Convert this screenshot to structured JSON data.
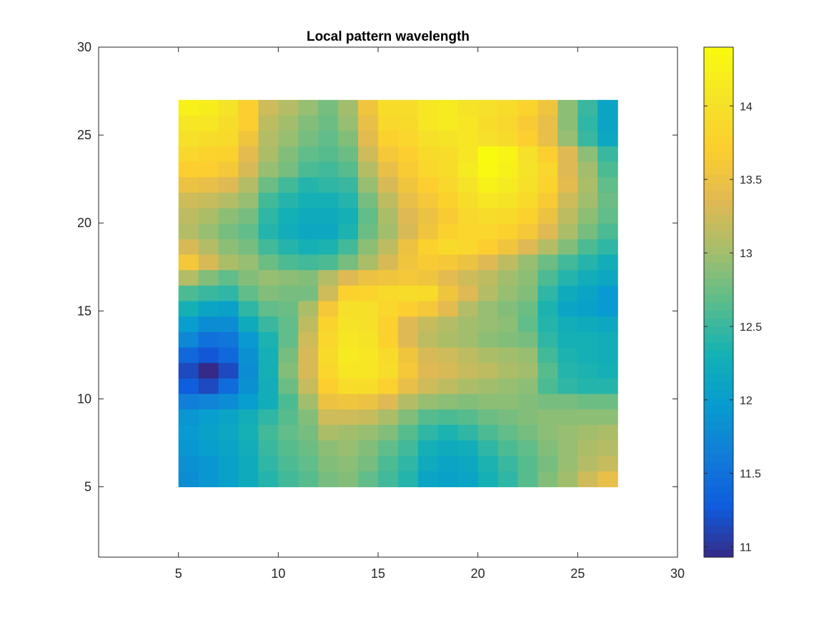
{
  "chart_data": {
    "type": "heatmap",
    "title": "Local pattern wavelength",
    "xlabel": "",
    "ylabel": "",
    "xlim": [
      1,
      30
    ],
    "ylim": [
      1,
      30
    ],
    "xticks": [
      5,
      10,
      15,
      20,
      25,
      30
    ],
    "yticks": [
      5,
      10,
      15,
      20,
      25,
      30
    ],
    "grid": false,
    "colormap": "parula",
    "clim": [
      10.93,
      14.4
    ],
    "colorbar": {
      "position": "right",
      "ticks": [
        11,
        11.5,
        12,
        12.5,
        13,
        13.5,
        14
      ]
    },
    "x_range": [
      5,
      27
    ],
    "y_range": [
      5,
      27
    ],
    "rows_top_to_bottom": [
      [
        14.25,
        14.2,
        14.05,
        13.7,
        13.25,
        13.1,
        12.95,
        12.8,
        13.0,
        13.55,
        13.95,
        13.95,
        14.1,
        14.15,
        14.05,
        14.0,
        13.95,
        13.8,
        13.55,
        12.9,
        12.5,
        12.1
      ],
      [
        14.1,
        14.1,
        13.95,
        13.7,
        13.15,
        13.0,
        12.85,
        12.75,
        12.95,
        13.45,
        13.85,
        13.9,
        14.1,
        14.15,
        14.1,
        13.95,
        13.85,
        13.65,
        13.45,
        12.9,
        12.45,
        12.1
      ],
      [
        14.0,
        13.95,
        13.9,
        13.55,
        13.1,
        12.95,
        12.8,
        12.7,
        12.85,
        13.4,
        13.75,
        13.85,
        14.0,
        14.05,
        14.1,
        14.0,
        13.9,
        13.7,
        13.45,
        12.95,
        12.5,
        12.15
      ],
      [
        13.85,
        13.8,
        13.75,
        13.4,
        13.05,
        12.85,
        12.7,
        12.65,
        12.75,
        13.25,
        13.6,
        13.7,
        13.9,
        13.95,
        14.1,
        14.4,
        14.3,
        14.0,
        13.7,
        13.35,
        12.9,
        12.5
      ],
      [
        13.7,
        13.7,
        13.6,
        13.3,
        12.95,
        12.8,
        12.6,
        12.55,
        12.65,
        13.1,
        13.45,
        13.65,
        13.85,
        13.95,
        14.15,
        14.35,
        14.25,
        14.05,
        13.85,
        13.35,
        13.0,
        12.6
      ],
      [
        13.5,
        13.45,
        13.35,
        13.1,
        12.75,
        12.55,
        12.4,
        12.45,
        12.5,
        12.95,
        13.3,
        13.55,
        13.7,
        13.85,
        14.05,
        14.25,
        14.15,
        14.0,
        13.8,
        13.4,
        13.05,
        12.7
      ],
      [
        13.25,
        13.2,
        13.1,
        12.95,
        12.55,
        12.4,
        12.3,
        12.3,
        12.4,
        12.8,
        13.15,
        13.45,
        13.6,
        13.75,
        13.95,
        14.1,
        14.05,
        13.9,
        13.65,
        13.25,
        13.0,
        12.75
      ],
      [
        13.15,
        13.05,
        12.9,
        12.8,
        12.45,
        12.3,
        12.2,
        12.2,
        12.3,
        12.7,
        13.05,
        13.35,
        13.5,
        13.65,
        13.85,
        13.95,
        13.9,
        13.75,
        13.5,
        13.15,
        12.9,
        12.7
      ],
      [
        13.1,
        12.95,
        12.8,
        12.7,
        12.4,
        12.25,
        12.15,
        12.15,
        12.35,
        12.75,
        13.0,
        13.3,
        13.55,
        13.75,
        13.85,
        13.85,
        13.75,
        13.6,
        13.35,
        13.05,
        12.8,
        12.6
      ],
      [
        13.3,
        13.1,
        12.9,
        12.8,
        12.55,
        12.4,
        12.3,
        12.35,
        12.55,
        12.9,
        13.15,
        13.5,
        13.75,
        13.9,
        13.85,
        13.7,
        13.55,
        13.35,
        13.1,
        12.85,
        12.6,
        12.45
      ],
      [
        13.6,
        13.3,
        13.05,
        12.95,
        12.75,
        12.6,
        12.55,
        12.6,
        12.8,
        13.05,
        13.3,
        13.55,
        13.65,
        13.6,
        13.5,
        13.35,
        13.15,
        12.95,
        12.75,
        12.55,
        12.4,
        12.25
      ],
      [
        13.1,
        12.85,
        12.7,
        12.85,
        12.95,
        12.9,
        12.85,
        13.1,
        13.35,
        13.5,
        13.55,
        13.6,
        13.55,
        13.4,
        13.25,
        13.15,
        13.0,
        12.9,
        12.6,
        12.4,
        12.25,
        12.15
      ],
      [
        12.6,
        12.5,
        12.45,
        12.7,
        12.85,
        12.8,
        12.8,
        13.25,
        13.75,
        13.8,
        13.9,
        13.95,
        13.9,
        13.55,
        13.35,
        13.1,
        12.95,
        12.85,
        12.45,
        12.2,
        12.1,
        11.95
      ],
      [
        12.3,
        12.1,
        12.05,
        12.45,
        12.7,
        12.75,
        13.05,
        13.6,
        14.0,
        14.0,
        13.85,
        13.7,
        13.6,
        13.4,
        13.1,
        12.95,
        12.85,
        12.75,
        12.35,
        12.1,
        12.05,
        11.95
      ],
      [
        12.0,
        11.8,
        11.8,
        12.2,
        12.5,
        12.7,
        13.15,
        13.8,
        14.05,
        14.0,
        13.75,
        13.35,
        13.2,
        13.1,
        13.0,
        12.95,
        12.9,
        12.7,
        12.4,
        12.25,
        12.2,
        12.15
      ],
      [
        11.75,
        11.5,
        11.55,
        11.95,
        12.35,
        12.7,
        13.25,
        13.85,
        14.1,
        14.05,
        13.75,
        13.35,
        13.15,
        13.05,
        13.0,
        12.9,
        12.85,
        12.8,
        12.45,
        12.3,
        12.3,
        12.25
      ],
      [
        11.4,
        11.25,
        11.4,
        11.85,
        12.3,
        12.8,
        13.3,
        13.9,
        14.15,
        14.1,
        13.9,
        13.55,
        13.3,
        13.25,
        13.15,
        13.05,
        13.0,
        12.95,
        12.55,
        12.35,
        12.3,
        12.25
      ],
      [
        11.15,
        10.93,
        11.15,
        11.8,
        12.3,
        12.85,
        13.3,
        13.85,
        14.1,
        14.1,
        13.95,
        13.6,
        13.35,
        13.3,
        13.2,
        13.15,
        13.05,
        13.0,
        12.65,
        12.4,
        12.35,
        12.3
      ],
      [
        11.3,
        11.15,
        11.45,
        11.85,
        12.25,
        12.75,
        13.2,
        13.7,
        13.95,
        13.95,
        13.75,
        13.45,
        13.25,
        13.15,
        13.05,
        13.0,
        12.95,
        12.9,
        12.6,
        12.45,
        12.4,
        12.4
      ],
      [
        11.65,
        11.7,
        11.8,
        12.0,
        12.25,
        12.6,
        13.0,
        13.5,
        13.55,
        13.5,
        13.35,
        13.1,
        12.95,
        12.9,
        12.85,
        12.9,
        12.9,
        12.85,
        12.8,
        12.8,
        12.75,
        12.75
      ],
      [
        11.9,
        12.0,
        12.1,
        12.25,
        12.45,
        12.65,
        12.85,
        13.25,
        13.25,
        13.2,
        13.05,
        12.85,
        12.65,
        12.6,
        12.65,
        12.75,
        12.8,
        12.85,
        12.9,
        12.9,
        12.9,
        12.9
      ],
      [
        11.95,
        12.05,
        12.15,
        12.3,
        12.55,
        12.7,
        12.8,
        13.05,
        13.0,
        12.95,
        12.85,
        12.65,
        12.45,
        12.35,
        12.45,
        12.6,
        12.7,
        12.8,
        12.9,
        12.95,
        13.0,
        13.05
      ],
      [
        11.9,
        12.0,
        12.1,
        12.25,
        12.5,
        12.65,
        12.75,
        12.9,
        12.95,
        12.85,
        12.7,
        12.55,
        12.3,
        12.2,
        12.25,
        12.45,
        12.6,
        12.7,
        12.85,
        12.95,
        13.05,
        13.1
      ],
      [
        11.85,
        11.9,
        12.05,
        12.2,
        12.45,
        12.6,
        12.7,
        12.85,
        12.9,
        12.8,
        12.6,
        12.45,
        12.2,
        12.1,
        12.15,
        12.35,
        12.5,
        12.65,
        12.8,
        12.95,
        13.1,
        13.2
      ],
      [
        11.8,
        11.9,
        12.05,
        12.2,
        12.4,
        12.55,
        12.65,
        12.8,
        12.85,
        12.7,
        12.55,
        12.4,
        12.1,
        12.05,
        12.1,
        12.3,
        12.45,
        12.65,
        12.85,
        13.0,
        13.25,
        13.45
      ]
    ]
  }
}
